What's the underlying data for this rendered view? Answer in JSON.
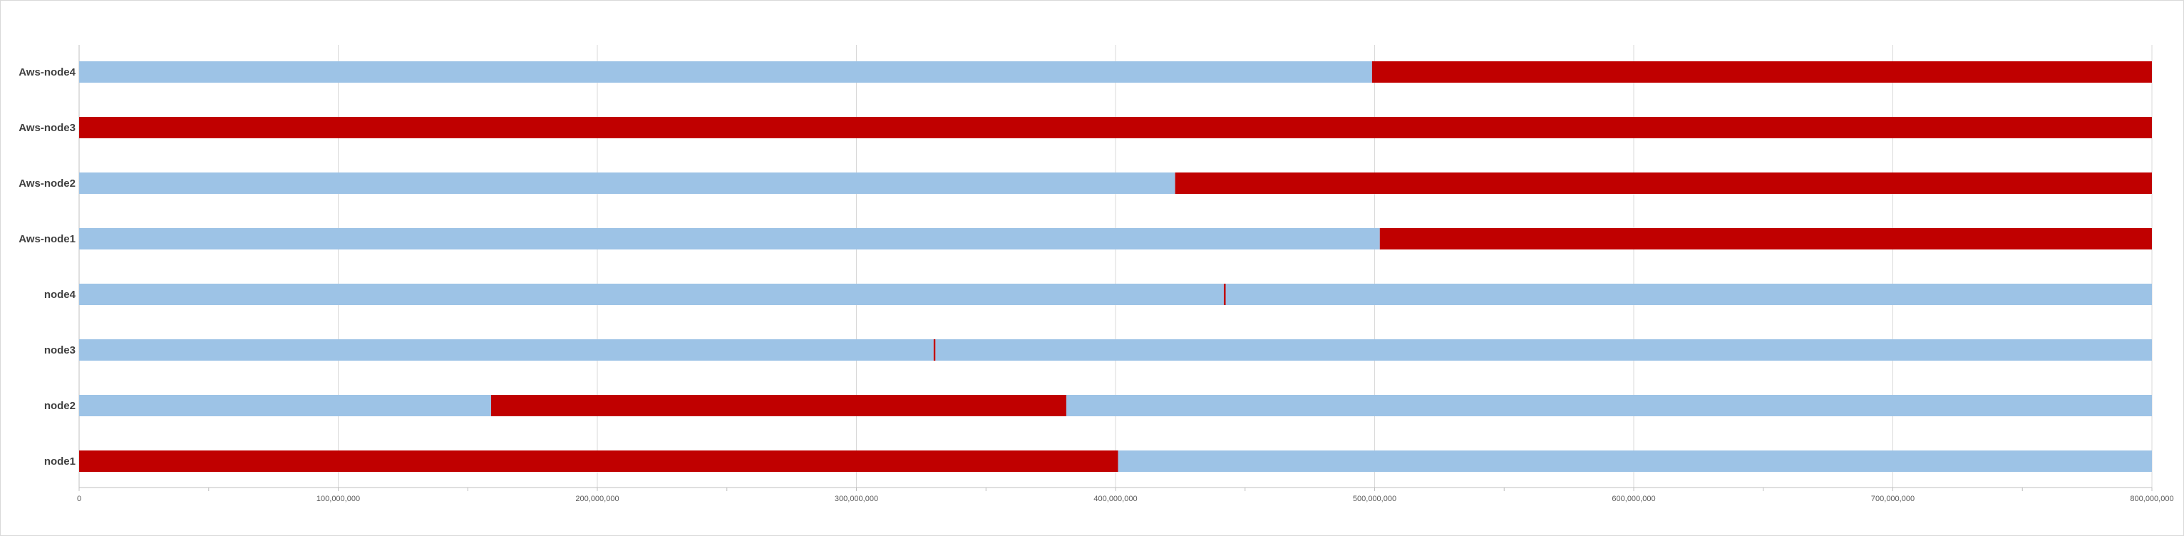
{
  "chart_data": {
    "type": "bar",
    "orientation": "horizontal",
    "stacked": true,
    "categories": [
      "node1",
      "node2",
      "node3",
      "node4",
      "Aws-node1",
      "Aws-node2",
      "Aws-node3",
      "Aws-node4"
    ],
    "segments": [
      [
        {
          "status": "down",
          "start": 0,
          "end": 401000000
        },
        {
          "status": "up",
          "start": 401000000,
          "end": 800000000
        }
      ],
      [
        {
          "status": "up",
          "start": 0,
          "end": 159000000
        },
        {
          "status": "down",
          "start": 159000000,
          "end": 381000000
        },
        {
          "status": "up",
          "start": 381000000,
          "end": 800000000
        }
      ],
      [
        {
          "status": "up",
          "start": 0,
          "end": 329800000
        },
        {
          "status": "down",
          "start": 329800000,
          "end": 330500000
        },
        {
          "status": "up",
          "start": 330500000,
          "end": 800000000
        }
      ],
      [
        {
          "status": "up",
          "start": 0,
          "end": 441800000
        },
        {
          "status": "down",
          "start": 441800000,
          "end": 442500000
        },
        {
          "status": "up",
          "start": 442500000,
          "end": 800000000
        }
      ],
      [
        {
          "status": "up",
          "start": 0,
          "end": 502000000
        },
        {
          "status": "down",
          "start": 502000000,
          "end": 800000000
        }
      ],
      [
        {
          "status": "up",
          "start": 0,
          "end": 423000000
        },
        {
          "status": "down",
          "start": 423000000,
          "end": 800000000
        }
      ],
      [
        {
          "status": "down",
          "start": 0,
          "end": 800000000
        }
      ],
      [
        {
          "status": "up",
          "start": 0,
          "end": 499000000
        },
        {
          "status": "down",
          "start": 499000000,
          "end": 800000000
        }
      ]
    ],
    "colors": {
      "up": "#9dc3e6",
      "down": "#c00000"
    },
    "xlim": [
      0,
      800000000
    ],
    "xticks": [
      0,
      100000000,
      200000000,
      300000000,
      400000000,
      500000000,
      600000000,
      700000000,
      800000000
    ],
    "xtick_labels": [
      "0",
      "100,000,000",
      "200,000,000",
      "300,000,000",
      "400,000,000",
      "500,000,000",
      "600,000,000",
      "700,000,000",
      "800,000,000"
    ],
    "grid": true,
    "legend": "none",
    "title": "",
    "xlabel": "",
    "ylabel": ""
  }
}
